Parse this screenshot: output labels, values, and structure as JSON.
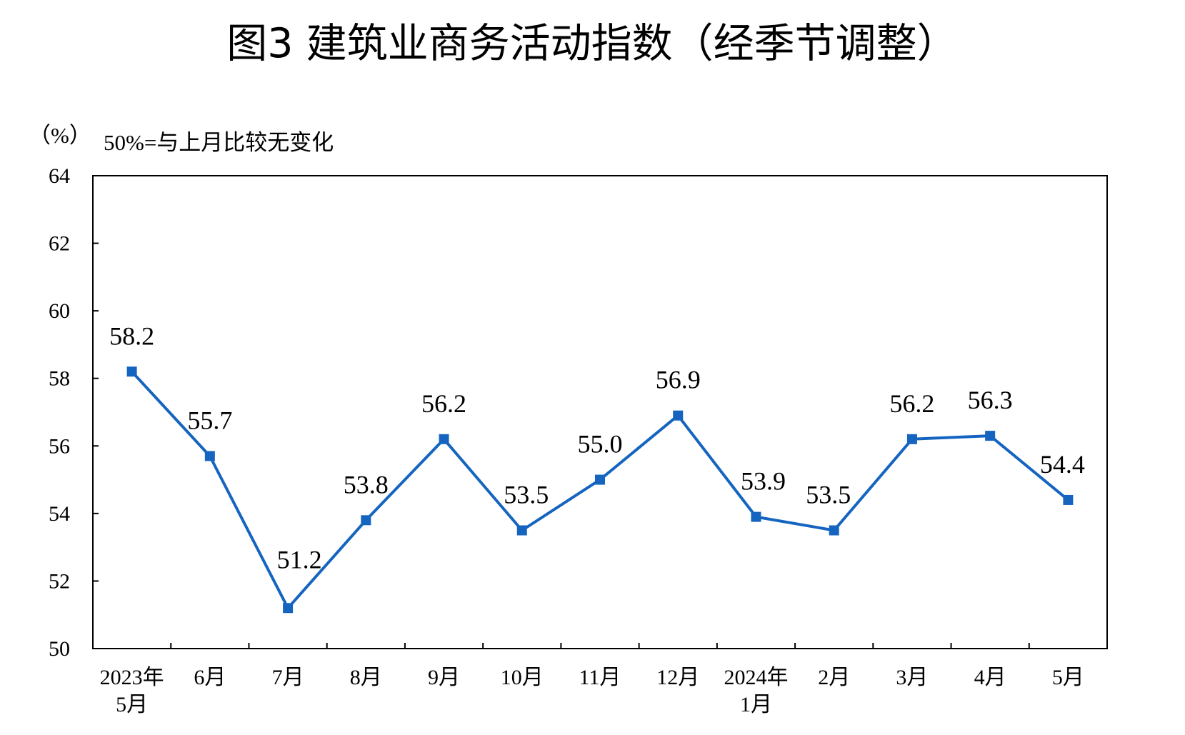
{
  "chart_data": {
    "type": "line",
    "title": "图3  建筑业商务活动指数（经季节调整）",
    "unit": "（%）",
    "note": "50%=与上月比较无变化",
    "categories": [
      [
        "2023年",
        "5月"
      ],
      [
        "6月"
      ],
      [
        "7月"
      ],
      [
        "8月"
      ],
      [
        "9月"
      ],
      [
        "10月"
      ],
      [
        "11月"
      ],
      [
        "12月"
      ],
      [
        "2024年",
        "1月"
      ],
      [
        "2月"
      ],
      [
        "3月"
      ],
      [
        "4月"
      ],
      [
        "5月"
      ]
    ],
    "series": [
      {
        "values": [
          58.2,
          55.7,
          51.2,
          53.8,
          56.2,
          53.5,
          55.0,
          56.9,
          53.9,
          53.5,
          56.2,
          56.3,
          54.4
        ],
        "color": "#1565C0"
      }
    ],
    "data_labels": [
      "58.2",
      "55.7",
      "51.2",
      "53.8",
      "56.2",
      "53.5",
      "55.0",
      "56.9",
      "53.9",
      "53.5",
      "56.2",
      "56.3",
      "54.4"
    ],
    "yticks": [
      "50",
      "52",
      "54",
      "56",
      "58",
      "60",
      "62",
      "64"
    ],
    "ylim": [
      50,
      64
    ],
    "grid": false,
    "legend": "none"
  }
}
